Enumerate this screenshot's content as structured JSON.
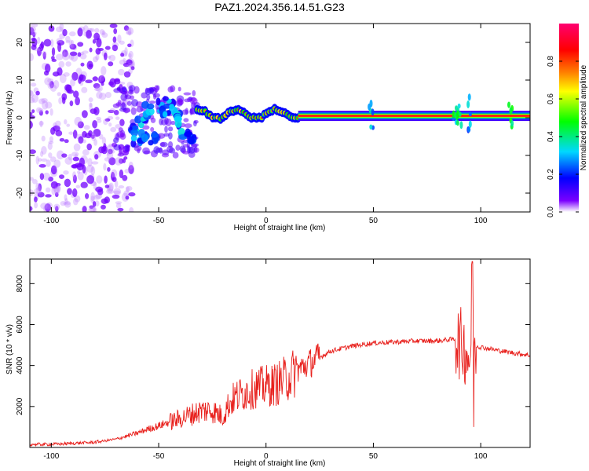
{
  "title": "PAZ1.2024.356.14.51.G23",
  "chart_data": [
    {
      "type": "heatmap",
      "panel": "spectrogram",
      "xlabel": "Height of straight line (km)",
      "ylabel": "Frequency (Hz)",
      "xlim": [
        -110,
        123
      ],
      "ylim": [
        -25,
        25
      ],
      "xticks": [
        -100,
        -50,
        0,
        50,
        100
      ],
      "yticks": [
        -20,
        -10,
        0,
        10,
        20
      ],
      "colorbar": {
        "label": "Normalized spectral amplitude",
        "range": [
          0,
          1
        ],
        "ticks": [
          0.0,
          0.2,
          0.4,
          0.6,
          0.8
        ],
        "colormap": [
          "#ffffff",
          "#7b00ff",
          "#0000ff",
          "#00d8ff",
          "#00ff00",
          "#ffff00",
          "#ff8000",
          "#ff0000",
          "#ff0070"
        ]
      },
      "features": [
        {
          "x_range": [
            -110,
            -70
          ],
          "description": "noise",
          "freq_range": [
            -25,
            25
          ],
          "amplitude": 0.05
        },
        {
          "x_range": [
            -70,
            -32
          ],
          "description": "scattered signal",
          "freq_range": [
            -10,
            8
          ],
          "amplitude": 0.25
        },
        {
          "x_range": [
            -32,
            15
          ],
          "description": "fluctuating line",
          "freq_center": 1,
          "amplitude": 0.7
        },
        {
          "x_range": [
            15,
            123
          ],
          "description": "stable line",
          "freq_center": 0.5,
          "amplitude": 0.95
        }
      ]
    },
    {
      "type": "line",
      "panel": "snr",
      "xlabel": "Height of straight line (km)",
      "ylabel": "SNR (10 * v/v)",
      "xlim": [
        -110,
        123
      ],
      "ylim": [
        0,
        9200
      ],
      "xticks": [
        -100,
        -50,
        0,
        50,
        100
      ],
      "yticks": [
        2000,
        4000,
        6000,
        8000
      ],
      "color": "#e8201c",
      "series": [
        {
          "x": [
            -110,
            -100,
            -90,
            -80,
            -70,
            -65,
            -60,
            -55,
            -50,
            -45,
            -40,
            -35,
            -30,
            -25,
            -20,
            -18,
            -15,
            -10,
            -5,
            0,
            5,
            10,
            15,
            20,
            25,
            30,
            40,
            50,
            60,
            70,
            80,
            88,
            90,
            92,
            94,
            96,
            97,
            100,
            110,
            123
          ],
          "y": [
            150,
            150,
            200,
            250,
            400,
            550,
            700,
            900,
            1050,
            1250,
            1400,
            1600,
            1800,
            1800,
            1500,
            2000,
            2400,
            2700,
            2900,
            3000,
            3100,
            3400,
            3800,
            4100,
            4400,
            4700,
            4950,
            5100,
            5150,
            5200,
            5200,
            5300,
            5100,
            5000,
            4500,
            4500,
            5000,
            4900,
            4700,
            4500
          ]
        }
      ]
    }
  ]
}
